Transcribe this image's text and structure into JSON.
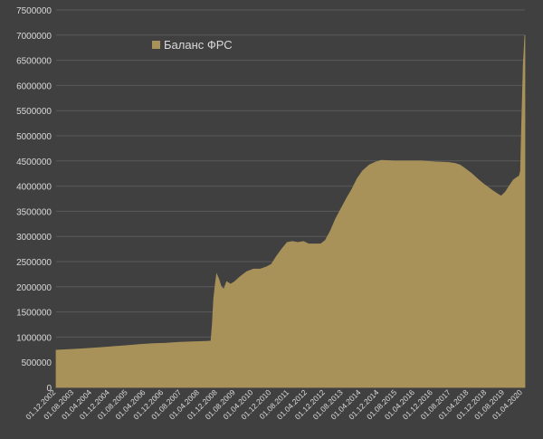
{
  "colors": {
    "background": "#404040",
    "grid": "#5a5a5a",
    "text": "#d9d9d9",
    "series": "#a8925a"
  },
  "chart_data": {
    "type": "area",
    "title": "",
    "xlabel": "",
    "ylabel": "",
    "ylim": [
      0,
      7500000
    ],
    "yticks": [
      0,
      500000,
      1000000,
      1500000,
      2000000,
      2500000,
      3000000,
      3500000,
      4000000,
      4500000,
      5000000,
      5500000,
      6000000,
      6500000,
      7000000,
      7500000
    ],
    "ytick_labels": [
      "0",
      "500000",
      "1000000",
      "1500000",
      "2000000",
      "2500000",
      "3000000",
      "3500000",
      "4000000",
      "4500000",
      "5000000",
      "5500000",
      "6000000",
      "6500000",
      "7000000",
      "7500000"
    ],
    "xlim": [
      2002.917,
      2020.33
    ],
    "xticks": [
      {
        "label": "01.12.2002",
        "t": 2002.917
      },
      {
        "label": "01.08.2003",
        "t": 2003.583
      },
      {
        "label": "01.04.2004",
        "t": 2004.25
      },
      {
        "label": "01.12.2004",
        "t": 2004.917
      },
      {
        "label": "01.08.2005",
        "t": 2005.583
      },
      {
        "label": "01.04.2006",
        "t": 2006.25
      },
      {
        "label": "01.12.2006",
        "t": 2006.917
      },
      {
        "label": "01.08.2007",
        "t": 2007.583
      },
      {
        "label": "01.04.2008",
        "t": 2008.25
      },
      {
        "label": "01.12.2008",
        "t": 2008.917
      },
      {
        "label": "01.08.2009",
        "t": 2009.583
      },
      {
        "label": "01.04.2010",
        "t": 2010.25
      },
      {
        "label": "01.12.2010",
        "t": 2010.917
      },
      {
        "label": "01.08.2011",
        "t": 2011.583
      },
      {
        "label": "01.04.2012",
        "t": 2012.25
      },
      {
        "label": "01.12.2012",
        "t": 2012.917
      },
      {
        "label": "01.08.2013",
        "t": 2013.583
      },
      {
        "label": "01.04.2014",
        "t": 2014.25
      },
      {
        "label": "01.12.2014",
        "t": 2014.917
      },
      {
        "label": "01.08.2015",
        "t": 2015.583
      },
      {
        "label": "01.04.2016",
        "t": 2016.25
      },
      {
        "label": "01.12.2016",
        "t": 2016.917
      },
      {
        "label": "01.08.2017",
        "t": 2017.583
      },
      {
        "label": "01.04.2018",
        "t": 2018.25
      },
      {
        "label": "01.12.2018",
        "t": 2018.917
      },
      {
        "label": "01.08.2019",
        "t": 2019.583
      },
      {
        "label": "01.04.2020",
        "t": 2020.25
      }
    ],
    "legend": {
      "label": "Баланс ФРС",
      "position": "top-left"
    },
    "series": [
      {
        "name": "Баланс ФРС",
        "points": [
          [
            2002.917,
            740000
          ],
          [
            2003.5,
            755000
          ],
          [
            2004.0,
            770000
          ],
          [
            2004.5,
            790000
          ],
          [
            2005.0,
            810000
          ],
          [
            2005.5,
            830000
          ],
          [
            2006.0,
            850000
          ],
          [
            2006.5,
            870000
          ],
          [
            2007.0,
            880000
          ],
          [
            2007.5,
            895000
          ],
          [
            2008.0,
            905000
          ],
          [
            2008.5,
            915000
          ],
          [
            2008.667,
            920000
          ],
          [
            2008.72,
            1250000
          ],
          [
            2008.77,
            1750000
          ],
          [
            2008.83,
            2050000
          ],
          [
            2008.88,
            2250000
          ],
          [
            2008.96,
            2150000
          ],
          [
            2009.05,
            2000000
          ],
          [
            2009.15,
            1950000
          ],
          [
            2009.25,
            2100000
          ],
          [
            2009.4,
            2050000
          ],
          [
            2009.55,
            2100000
          ],
          [
            2009.75,
            2200000
          ],
          [
            2010.0,
            2300000
          ],
          [
            2010.25,
            2350000
          ],
          [
            2010.5,
            2350000
          ],
          [
            2010.75,
            2400000
          ],
          [
            2010.917,
            2450000
          ],
          [
            2011.1,
            2600000
          ],
          [
            2011.3,
            2750000
          ],
          [
            2011.5,
            2880000
          ],
          [
            2011.7,
            2900000
          ],
          [
            2011.9,
            2880000
          ],
          [
            2012.1,
            2900000
          ],
          [
            2012.3,
            2850000
          ],
          [
            2012.5,
            2850000
          ],
          [
            2012.75,
            2850000
          ],
          [
            2012.917,
            2920000
          ],
          [
            2013.1,
            3100000
          ],
          [
            2013.3,
            3350000
          ],
          [
            2013.5,
            3550000
          ],
          [
            2013.7,
            3750000
          ],
          [
            2013.917,
            3950000
          ],
          [
            2014.1,
            4150000
          ],
          [
            2014.3,
            4300000
          ],
          [
            2014.55,
            4420000
          ],
          [
            2014.8,
            4480000
          ],
          [
            2015.0,
            4510000
          ],
          [
            2015.5,
            4500000
          ],
          [
            2016.0,
            4500000
          ],
          [
            2016.5,
            4500000
          ],
          [
            2017.0,
            4480000
          ],
          [
            2017.5,
            4470000
          ],
          [
            2017.75,
            4450000
          ],
          [
            2017.917,
            4420000
          ],
          [
            2018.1,
            4350000
          ],
          [
            2018.35,
            4250000
          ],
          [
            2018.6,
            4130000
          ],
          [
            2018.85,
            4020000
          ],
          [
            2019.1,
            3920000
          ],
          [
            2019.3,
            3850000
          ],
          [
            2019.45,
            3800000
          ],
          [
            2019.6,
            3880000
          ],
          [
            2019.75,
            4000000
          ],
          [
            2019.9,
            4120000
          ],
          [
            2020.05,
            4180000
          ],
          [
            2020.12,
            4200000
          ],
          [
            2020.17,
            4300000
          ],
          [
            2020.2,
            5000000
          ],
          [
            2020.24,
            5800000
          ],
          [
            2020.27,
            6400000
          ],
          [
            2020.3,
            6700000
          ],
          [
            2020.33,
            7000000
          ]
        ]
      }
    ]
  }
}
